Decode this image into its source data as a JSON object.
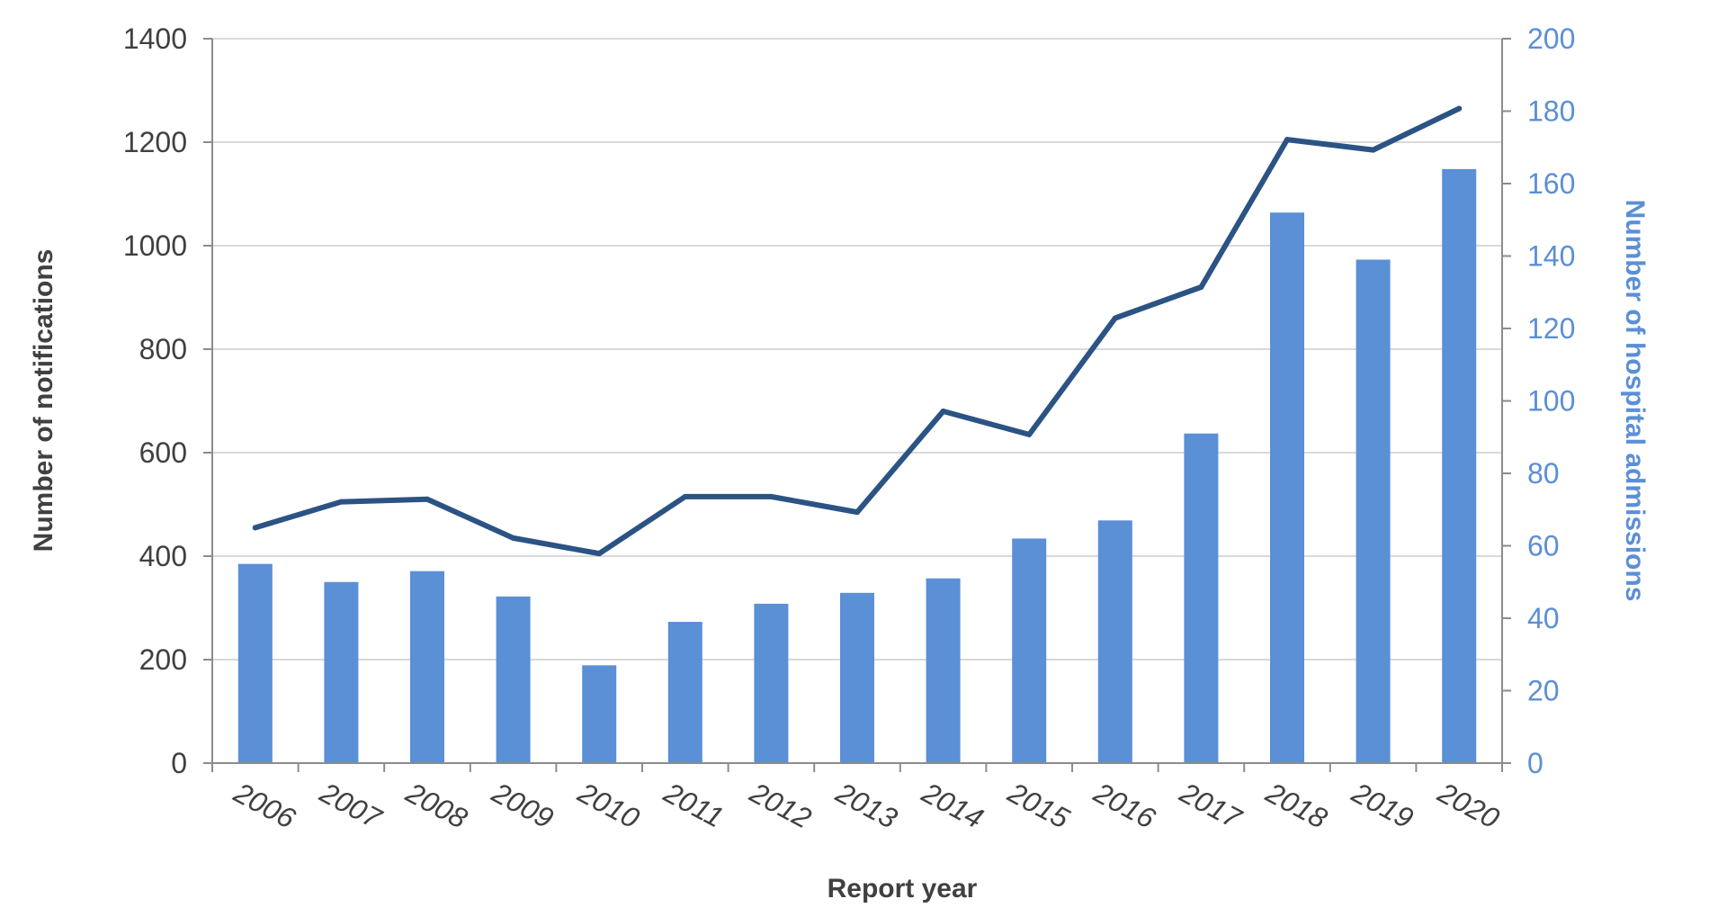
{
  "chart_data": {
    "type": "bar",
    "categories": [
      "2006",
      "2007",
      "2008",
      "2009",
      "2010",
      "2011",
      "2012",
      "2013",
      "2014",
      "2015",
      "2016",
      "2017",
      "2018",
      "2019",
      "2020"
    ],
    "series": [
      {
        "type": "bar",
        "axis": "right",
        "values": [
          55,
          50,
          53,
          46,
          27,
          39,
          44,
          47,
          51,
          62,
          67,
          91,
          152,
          139,
          164
        ]
      },
      {
        "type": "line",
        "axis": "left",
        "values": [
          455,
          505,
          510,
          435,
          405,
          515,
          515,
          485,
          680,
          635,
          860,
          920,
          1205,
          1185,
          1265
        ]
      }
    ],
    "xlabel": "Report year",
    "ylabel": "Number of notifications",
    "y2label": "Number of hospital admissions",
    "ylim": [
      0,
      1400
    ],
    "y2lim": [
      0,
      200
    ],
    "yticks": [
      "0",
      "200",
      "400",
      "600",
      "800",
      "1000",
      "1200",
      "1400"
    ],
    "y2ticks": [
      "0",
      "20",
      "40",
      "60",
      "80",
      "100",
      "120",
      "140",
      "160",
      "180",
      "200"
    ],
    "grid": true,
    "colors": {
      "bar": "#5b8fd6",
      "line": "#2b5384",
      "grid": "#d9d9d9",
      "axis": "#8c8c8c",
      "left_text": "#404040",
      "right_text": "#5b8fd6"
    }
  }
}
